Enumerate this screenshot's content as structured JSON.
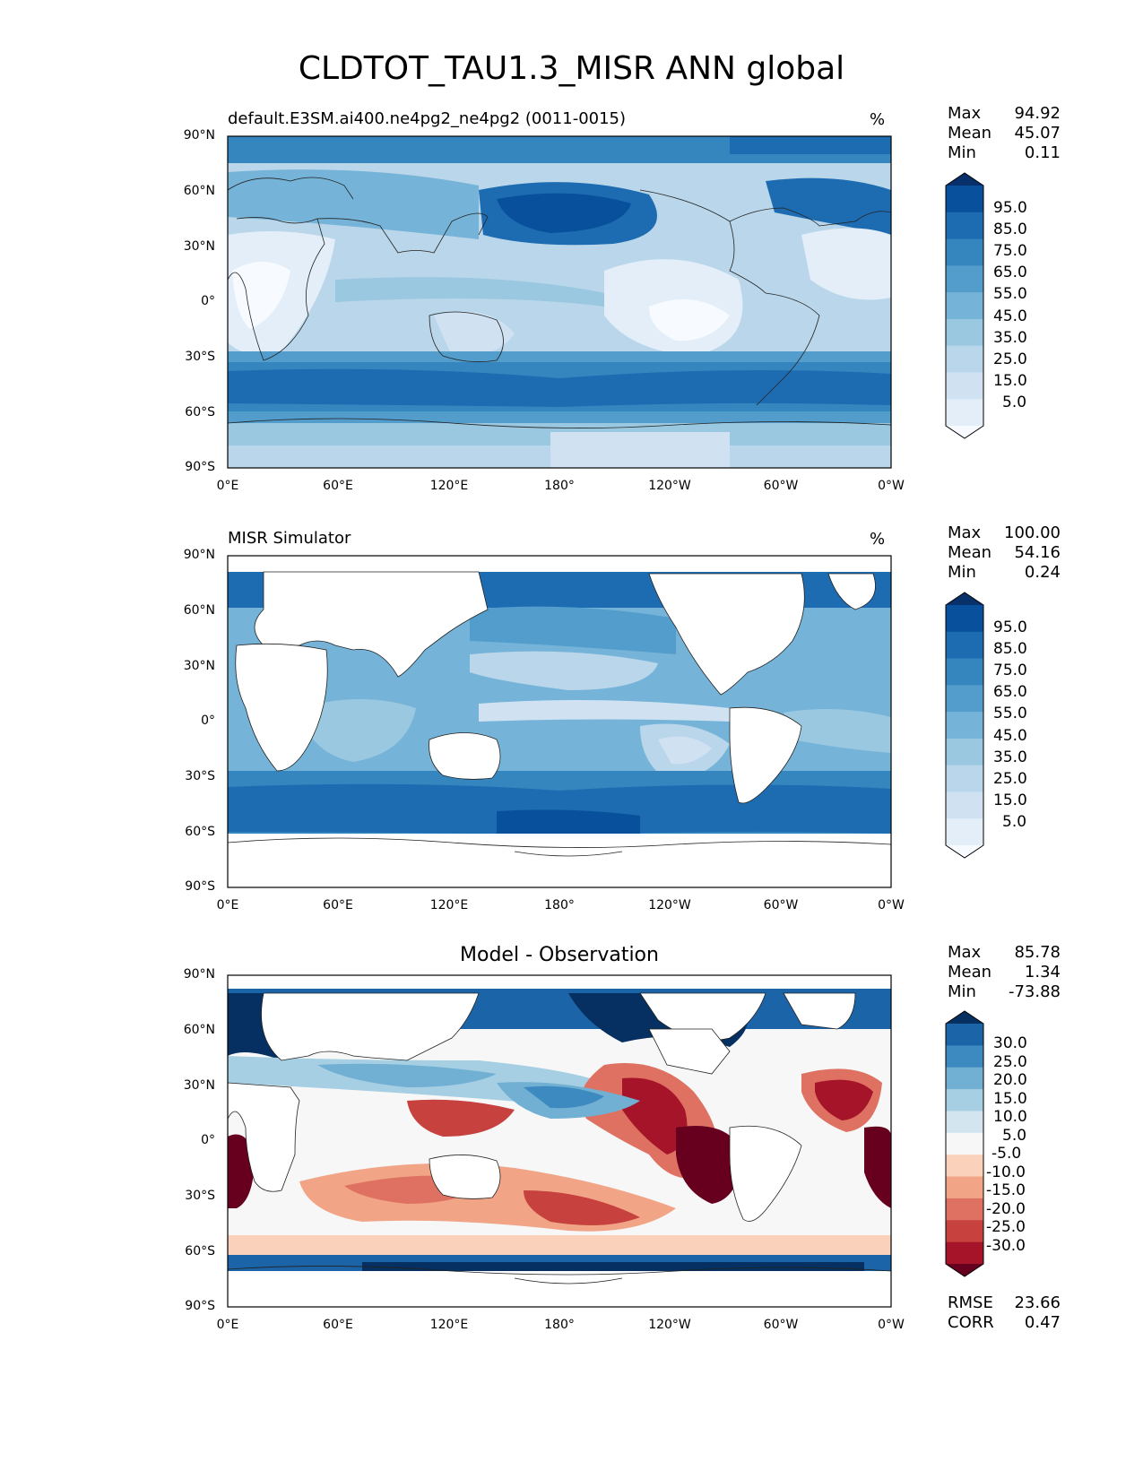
{
  "figure": {
    "title": "CLDTOT_TAU1.3_MISR ANN global"
  },
  "axes": {
    "y_ticks": [
      "90°N",
      "60°N",
      "30°N",
      "0°",
      "30°S",
      "60°S",
      "90°S"
    ],
    "x_ticks": [
      "0°E",
      "60°E",
      "120°E",
      "180°",
      "120°W",
      "60°W",
      "0°W"
    ]
  },
  "colormaps": {
    "blues": [
      "#f7fbff",
      "#e3eef9",
      "#d0e2f2",
      "#b9d6ea",
      "#9ac8e0",
      "#75b4d8",
      "#529dcc",
      "#3585bf",
      "#1d6cb1",
      "#08509b",
      "#08306b"
    ],
    "rdbu": [
      "#67001f",
      "#a51429",
      "#c7423e",
      "#de7161",
      "#f1a586",
      "#fad2bc",
      "#f7f7f7",
      "#d3e6f0",
      "#a6cfe3",
      "#71b0d3",
      "#3d8ac0",
      "#1c64a8",
      "#053061"
    ]
  },
  "panels": [
    {
      "id": "model",
      "title_left": "default.E3SM.ai400.ne4pg2_ne4pg2 (0011-0015)",
      "title_center": "",
      "unit": "%",
      "stats": {
        "max_label": "Max",
        "max": "94.92",
        "mean_label": "Mean",
        "mean": "45.07",
        "min_label": "Min",
        "min": "0.11"
      },
      "colorbar_labels": [
        "95.0",
        "85.0",
        "75.0",
        "65.0",
        "55.0",
        "45.0",
        "35.0",
        "25.0",
        "15.0",
        "5.0"
      ]
    },
    {
      "id": "obs",
      "title_left": "MISR Simulator",
      "title_center": "",
      "unit": "%",
      "stats": {
        "max_label": "Max",
        "max": "100.00",
        "mean_label": "Mean",
        "mean": "54.16",
        "min_label": "Min",
        "min": "0.24"
      },
      "colorbar_labels": [
        "95.0",
        "85.0",
        "75.0",
        "65.0",
        "55.0",
        "45.0",
        "35.0",
        "25.0",
        "15.0",
        "5.0"
      ]
    },
    {
      "id": "diff",
      "title_left": "",
      "title_center": "Model - Observation",
      "unit": "",
      "stats": {
        "max_label": "Max",
        "max": "85.78",
        "mean_label": "Mean",
        "mean": "1.34",
        "min_label": "Min",
        "min": "-73.88"
      },
      "colorbar_labels": [
        "30.0",
        "25.0",
        "20.0",
        "15.0",
        "10.0",
        "5.0",
        "-5.0",
        "-10.0",
        "-15.0",
        "-20.0",
        "-25.0",
        "-30.0"
      ],
      "metrics": {
        "rmse_label": "RMSE",
        "rmse": "23.66",
        "corr_label": "CORR",
        "corr": "0.47"
      }
    }
  ]
}
